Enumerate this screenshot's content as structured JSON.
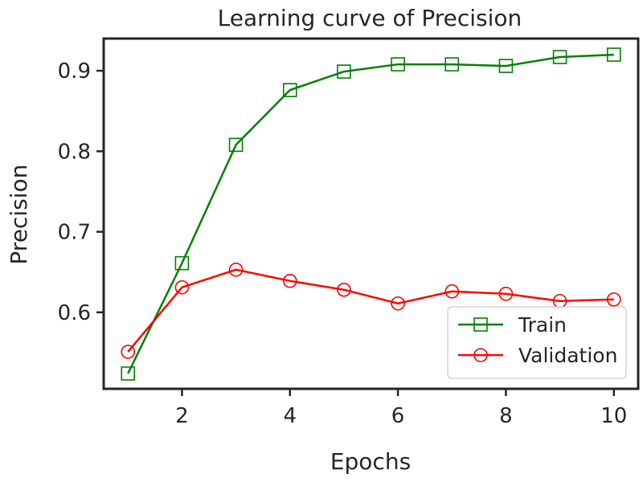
{
  "chart_data": {
    "type": "line",
    "title": "Learning curve of Precision",
    "xlabel": "Epochs",
    "ylabel": "Precision",
    "xlim": [
      0.55,
      10.45
    ],
    "ylim": [
      0.505,
      0.94
    ],
    "xticks": [
      2,
      4,
      6,
      8,
      10
    ],
    "yticks": [
      0.6,
      0.7,
      0.8,
      0.9
    ],
    "ytick_labels": [
      "0.6",
      "0.7",
      "0.8",
      "0.9"
    ],
    "grid": false,
    "legend_position": "lower-right",
    "x": [
      1,
      2,
      3,
      4,
      5,
      6,
      7,
      8,
      9,
      10
    ],
    "series": [
      {
        "name": "Train",
        "color": "#008000",
        "marker": "square",
        "values": [
          0.524,
          0.661,
          0.808,
          0.876,
          0.899,
          0.908,
          0.908,
          0.906,
          0.917,
          0.92
        ]
      },
      {
        "name": "Validation",
        "color": "#ff0000",
        "marker": "circle",
        "values": [
          0.551,
          0.631,
          0.653,
          0.639,
          0.628,
          0.611,
          0.626,
          0.623,
          0.614,
          0.616
        ]
      }
    ]
  }
}
